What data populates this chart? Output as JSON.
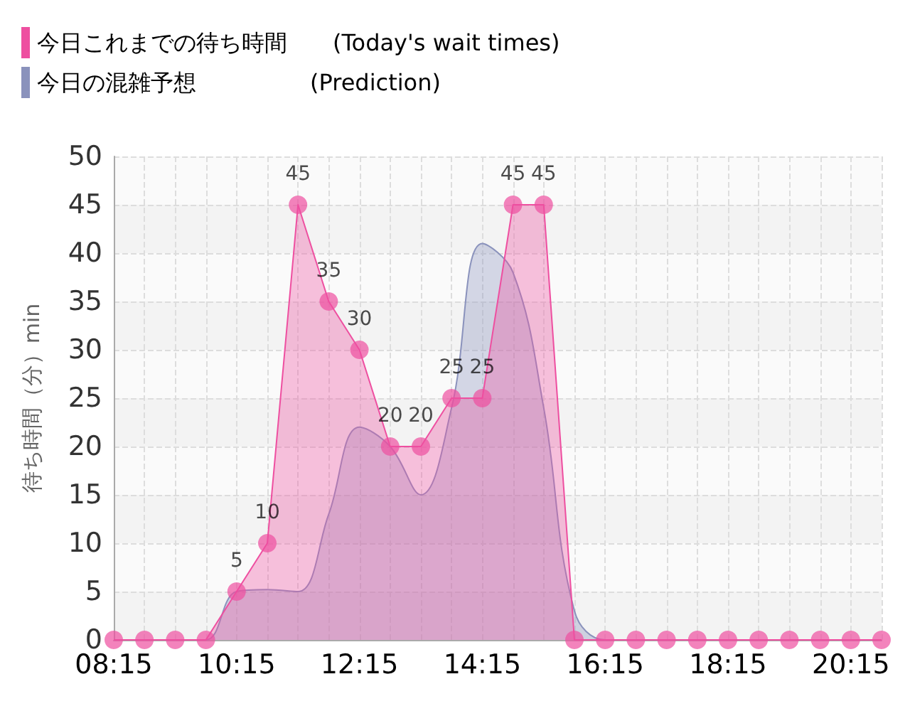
{
  "chart_data": {
    "type": "area",
    "ylabel": "待ち時間（分）min",
    "categories": [
      "08:15",
      null,
      null,
      null,
      "10:15",
      null,
      null,
      null,
      "12:15",
      null,
      null,
      null,
      "14:15",
      null,
      null,
      null,
      "16:15",
      null,
      null,
      null,
      "18:15",
      null,
      null,
      null,
      "20:15",
      null
    ],
    "series": [
      {
        "name": "今日これまでの待ち時間　　(Today's wait times)",
        "color": "#ee4fa0",
        "marker": "circle",
        "values": [
          0,
          0,
          0,
          0,
          5,
          10,
          45,
          35,
          30,
          20,
          20,
          25,
          25,
          45,
          45,
          0,
          0,
          0,
          0,
          0,
          0,
          0,
          0,
          0,
          0,
          0
        ],
        "value_labels": [
          null,
          null,
          null,
          null,
          "5",
          "10",
          "45",
          "35",
          "30",
          "20",
          "20",
          "25",
          "25",
          "45",
          "45",
          null,
          null,
          null,
          null,
          null,
          null,
          null,
          null,
          null,
          null,
          null
        ]
      },
      {
        "name": "今日の混雑予想　　　　　(Prediction)",
        "color": "#8a92bc",
        "marker": "none",
        "values": [
          0,
          0,
          0,
          0,
          5,
          5.2,
          5,
          13,
          22,
          20,
          15,
          24,
          41,
          38,
          24,
          3,
          0,
          0,
          0,
          0,
          0,
          0,
          0,
          0,
          0,
          0
        ]
      }
    ],
    "ylim": [
      0,
      50
    ],
    "yticks": [
      0,
      5,
      10,
      15,
      20,
      25,
      30,
      35,
      40,
      45,
      50
    ],
    "grid": true,
    "legend": "top left"
  }
}
